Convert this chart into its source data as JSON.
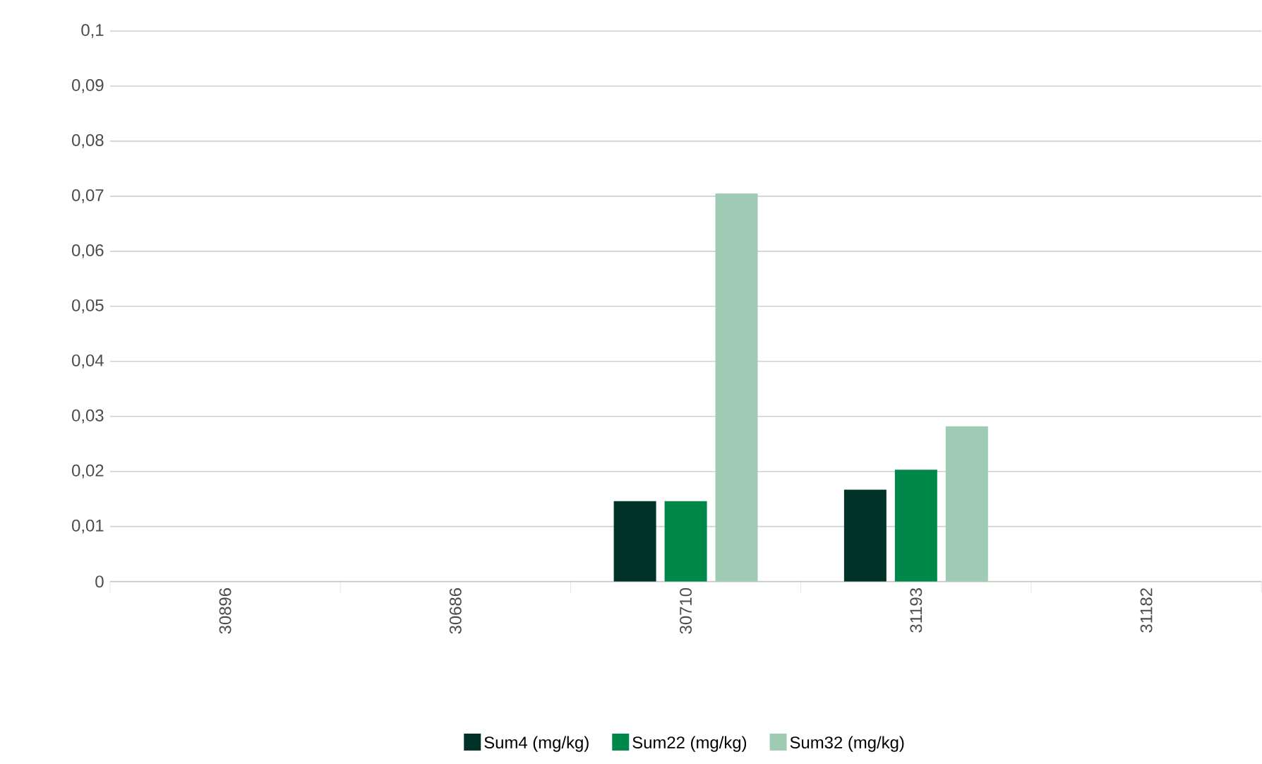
{
  "chart_data": {
    "type": "bar",
    "categories": [
      "30896",
      "30686",
      "30710",
      "31193",
      "31182"
    ],
    "series": [
      {
        "name": "Sum4 (mg/kg)",
        "color": "#003228",
        "values": [
          0,
          0,
          0.0146,
          0.0167,
          0
        ]
      },
      {
        "name": "Sum22 (mg/kg)",
        "color": "#00884a",
        "values": [
          0,
          0,
          0.0146,
          0.0203,
          0
        ]
      },
      {
        "name": "Sum32 (mg/kg)",
        "color": "#9fcbb5",
        "values": [
          0,
          0,
          0.0705,
          0.0282,
          0
        ]
      }
    ],
    "ylim": [
      0,
      0.1
    ],
    "yticks": [
      0,
      {
        "value": 0.01,
        "label": "0,01"
      },
      {
        "value": 0.02,
        "label": "0,02"
      },
      {
        "value": 0.03,
        "label": "0,03"
      },
      {
        "value": 0.04,
        "label": "0,04"
      },
      {
        "value": 0.05,
        "label": "0,05"
      },
      {
        "value": 0.06,
        "label": "0,06"
      },
      {
        "value": 0.07,
        "label": "0,07"
      },
      {
        "value": 0.08,
        "label": "0,08"
      },
      {
        "value": 0.09,
        "label": "0,09"
      },
      {
        "value": 0.1,
        "label": "0,1"
      }
    ],
    "grid": "y",
    "legend": "bottom"
  }
}
